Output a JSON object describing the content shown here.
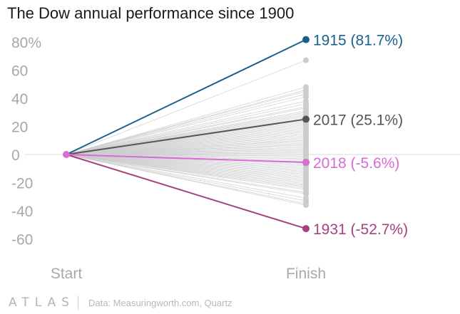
{
  "chart_data": {
    "type": "line",
    "title": "The Dow annual performance since 1900",
    "x": [
      "Start",
      "Finish"
    ],
    "ylim": [
      -70,
      85
    ],
    "yticks": [
      {
        "value": 80,
        "label": "80%"
      },
      {
        "value": 60,
        "label": "60"
      },
      {
        "value": 40,
        "label": "40"
      },
      {
        "value": 20,
        "label": "20"
      },
      {
        "value": 0,
        "label": "0"
      },
      {
        "value": -20,
        "label": "-20"
      },
      {
        "value": -40,
        "label": "-40"
      },
      {
        "value": -60,
        "label": "-60"
      }
    ],
    "grid": false,
    "background_series_color": "#cccccc",
    "background_finish_values": [
      67,
      48,
      46,
      45,
      43,
      41,
      38,
      36,
      34,
      33,
      31,
      30,
      29,
      28,
      27,
      26,
      24,
      23,
      22,
      21,
      20,
      19,
      18,
      17,
      16,
      15,
      14,
      13,
      12,
      11,
      10,
      10,
      9,
      8,
      7,
      7,
      6,
      5,
      4,
      4,
      3,
      2,
      2,
      1,
      0,
      -1,
      -2,
      -3,
      -4,
      -5,
      -6,
      -7,
      -8,
      -9,
      -10,
      -11,
      -12,
      -13,
      -14,
      -15,
      -16,
      -17,
      -18,
      -19,
      -20,
      -21,
      -22,
      -23,
      -24,
      -25,
      -27,
      -28,
      -31,
      -33,
      -35,
      -36
    ],
    "highlighted": [
      {
        "label": "1915 (81.7%)",
        "value": 81.7,
        "color": "#1a5e8e"
      },
      {
        "label": "2017 (25.1%)",
        "value": 25.1,
        "color": "#555555"
      },
      {
        "label": "2018 (-5.6%)",
        "value": -5.6,
        "color": "#d86bd4"
      },
      {
        "label": "1931 (-52.7%)",
        "value": -52.7,
        "color": "#a5417d"
      }
    ]
  },
  "footer": {
    "logo": "ATLAS",
    "source": "Data: Measuringworth.com, Quartz"
  }
}
